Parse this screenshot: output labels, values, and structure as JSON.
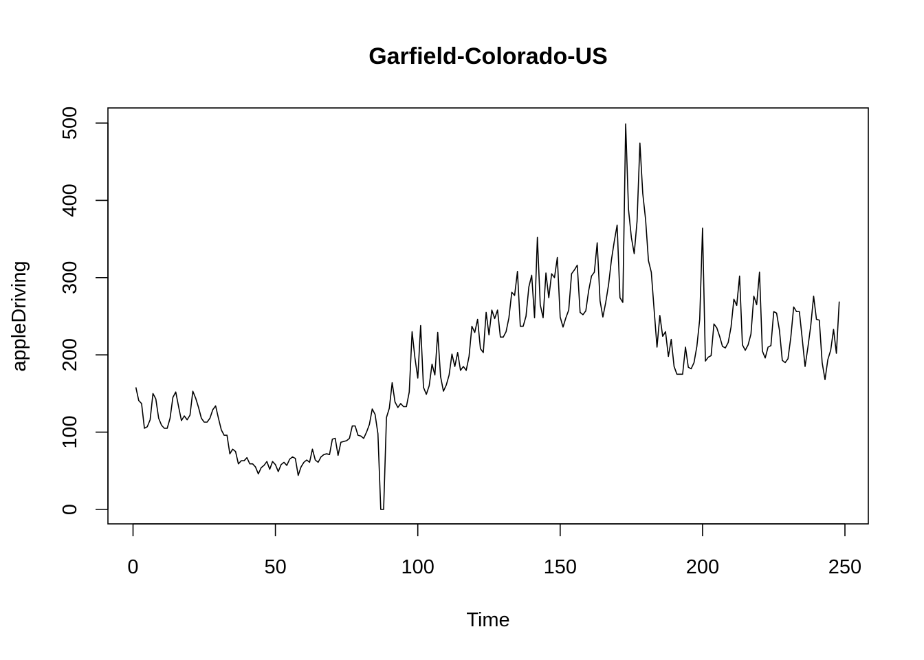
{
  "chart_data": {
    "type": "line",
    "title": "Garfield-Colorado-US",
    "xlabel": "Time",
    "ylabel": "appleDriving",
    "xlim": [
      1,
      248
    ],
    "ylim": [
      0,
      500
    ],
    "xticks": [
      0,
      50,
      100,
      150,
      200,
      250
    ],
    "yticks": [
      0,
      100,
      200,
      300,
      400,
      500
    ],
    "grid": false,
    "line_color": "#000000",
    "x_start": 1,
    "values": [
      158,
      141,
      137,
      105,
      107,
      116,
      150,
      143,
      118,
      109,
      105,
      105,
      118,
      145,
      152,
      133,
      115,
      121,
      116,
      122,
      153,
      144,
      132,
      118,
      113,
      113,
      118,
      129,
      134,
      118,
      103,
      96,
      96,
      72,
      78,
      75,
      59,
      63,
      63,
      67,
      59,
      59,
      55,
      46,
      54,
      57,
      62,
      52,
      62,
      58,
      49,
      58,
      61,
      57,
      65,
      68,
      66,
      44,
      55,
      61,
      64,
      61,
      78,
      64,
      61,
      68,
      71,
      72,
      71,
      91,
      92,
      70,
      87,
      88,
      89,
      92,
      108,
      108,
      96,
      95,
      92,
      100,
      110,
      130,
      123,
      98,
      0,
      0,
      119,
      131,
      164,
      139,
      132,
      137,
      133,
      133,
      152,
      230,
      196,
      170,
      238,
      158,
      149,
      160,
      188,
      174,
      229,
      172,
      153,
      161,
      174,
      201,
      185,
      203,
      180,
      185,
      180,
      198,
      237,
      229,
      246,
      208,
      203,
      255,
      226,
      258,
      247,
      258,
      223,
      223,
      230,
      248,
      281,
      277,
      308,
      237,
      237,
      250,
      288,
      303,
      248,
      352,
      265,
      248,
      306,
      274,
      305,
      300,
      326,
      249,
      236,
      248,
      258,
      305,
      310,
      316,
      255,
      252,
      257,
      283,
      302,
      307,
      345,
      270,
      249,
      268,
      291,
      323,
      347,
      368,
      274,
      268,
      499,
      388,
      352,
      331,
      373,
      474,
      409,
      375,
      322,
      307,
      258,
      210,
      251,
      224,
      230,
      198,
      220,
      185,
      175,
      175,
      175,
      210,
      184,
      182,
      190,
      211,
      246,
      364,
      192,
      197,
      199,
      240,
      235,
      224,
      211,
      209,
      216,
      236,
      272,
      264,
      302,
      213,
      206,
      213,
      227,
      276,
      265,
      307,
      205,
      196,
      210,
      212,
      256,
      254,
      232,
      193,
      190,
      195,
      223,
      262,
      256,
      256,
      221,
      185,
      210,
      238,
      276,
      246,
      245,
      190,
      168,
      194,
      206,
      233,
      202,
      269
    ]
  }
}
